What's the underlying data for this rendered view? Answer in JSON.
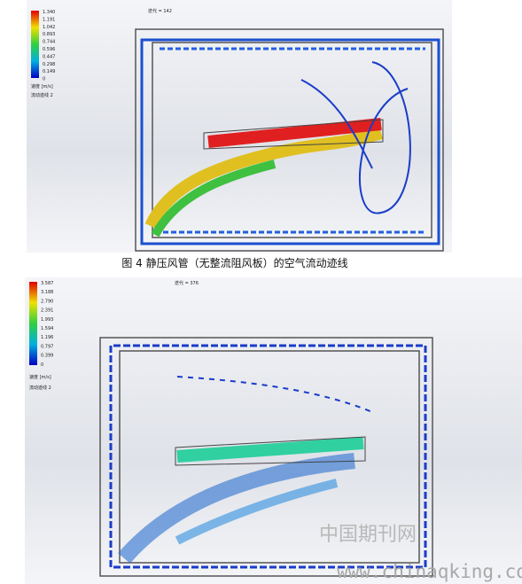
{
  "figure1": {
    "iteration": "迭代 = 142",
    "legend": {
      "ticks": [
        "1.340",
        "1.191",
        "1.042",
        "0.893",
        "0.744",
        "0.596",
        "0.447",
        "0.298",
        "0.149",
        "0"
      ],
      "unit": "速度 [m/s]",
      "name": "流动迹线 2"
    },
    "caption": "图 4 静压风管（无整流阻风板）的空气流动迹线"
  },
  "figure2": {
    "iteration": "迭代 = 376",
    "legend": {
      "ticks": [
        "3.587",
        "3.188",
        "2.790",
        "2.391",
        "1.993",
        "1.594",
        "1.196",
        "0.797",
        "0.399",
        "0"
      ],
      "unit": "速度 [m/s]",
      "name": "流动迹线 2"
    }
  },
  "watermark": {
    "name": "中国期刊网",
    "url": "www.chinaqking.com"
  }
}
